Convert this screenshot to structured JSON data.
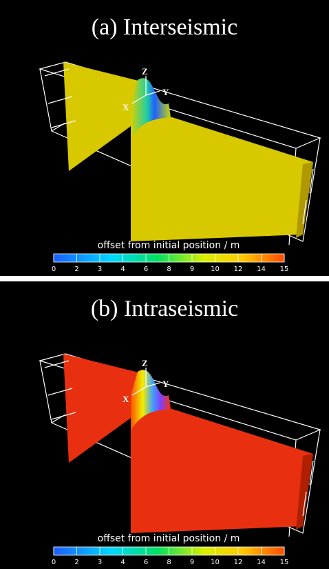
{
  "panels": [
    {
      "title": "(a) Interseismic",
      "axes": {
        "x": "X",
        "y": "Y",
        "z": "Z"
      },
      "colorbar": {
        "label": "offset from initial position / m",
        "ticks": [
          "0",
          "2",
          "3",
          "4",
          "6",
          "8",
          "9",
          "10",
          "12",
          "14",
          "15"
        ]
      }
    },
    {
      "title": "(b) Intraseismic",
      "axes": {
        "x": "X",
        "y": "Y",
        "z": "Z"
      },
      "colorbar": {
        "label": "offset from initial position / m",
        "ticks": [
          "0",
          "2",
          "3",
          "4",
          "6",
          "8",
          "9",
          "10",
          "12",
          "14",
          "15"
        ]
      }
    }
  ]
}
